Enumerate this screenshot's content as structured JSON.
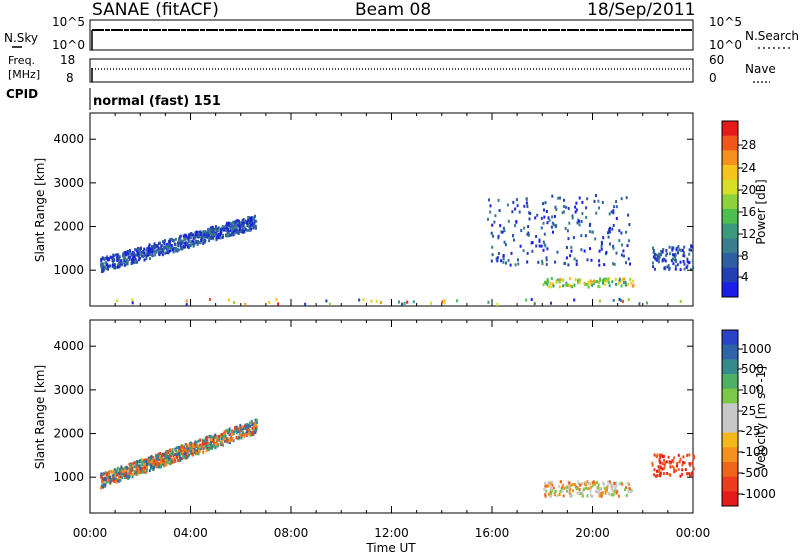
{
  "header": {
    "station": "SANAE (fitACF)",
    "beam": "Beam 08",
    "date": "18/Sep/2011"
  },
  "top_panels": {
    "nsky_label": "N.Sky",
    "nsky_ticks_left": [
      "10^5",
      "10^0"
    ],
    "nsky_ticks_right": [
      "10^5",
      "10^0"
    ],
    "nsearch_label": "N.Search",
    "freq_label_line1": "Freq.",
    "freq_label_line2": "[MHz]",
    "freq_ticks": [
      "18",
      "8"
    ],
    "nave_ticks": [
      "60",
      "0"
    ],
    "nave_label": "Nave",
    "cpid_label": "CPID",
    "cpid_text": "normal (fast) 151"
  },
  "power_colorbar": {
    "label": "Power [dB]",
    "ticks": [
      "28",
      "24",
      "20",
      "16",
      "12",
      "8",
      "4"
    ],
    "colors": [
      "#e51b1b",
      "#f0571b",
      "#f5911e",
      "#f7c31d",
      "#d6de2a",
      "#8fd13a",
      "#4cbf4f",
      "#399a7c",
      "#3a7d8e",
      "#2f5fa0",
      "#243fb3",
      "#1a1ee6"
    ]
  },
  "velocity_colorbar": {
    "label": "Velocity [m s^-1]",
    "ticks": [
      "1000",
      "500",
      "100",
      "25",
      "-25",
      "-100",
      "-500",
      "-1000"
    ],
    "colors": [
      "#2a43c9",
      "#2e63a8",
      "#368a8c",
      "#4faf64",
      "#7cc94a",
      "#c8c8c8",
      "#c8c8c8",
      "#f5b81a",
      "#f5911e",
      "#f0651c",
      "#ea3d1c",
      "#e51b1b"
    ]
  },
  "chart_data": [
    {
      "type": "heatmap",
      "title": "",
      "xlabel": "Time UT",
      "ylabel": "Slant Range [km]",
      "xticks": [
        "00:00",
        "04:00",
        "08:00",
        "12:00",
        "16:00",
        "20:00",
        "00:00"
      ],
      "yticks": [
        "1000",
        "2000",
        "3000",
        "4000"
      ],
      "xlim_hours": [
        0,
        24
      ],
      "ylim_km": [
        180,
        4600
      ],
      "colorbar_label": "Power [dB]",
      "scatter_regions": [
        {
          "t0": 0.4,
          "t1": 6.6,
          "r0": 1000,
          "r1": 2250,
          "note": "rising echo band",
          "density": 0.55
        },
        {
          "t0": 18.0,
          "t1": 21.6,
          "r0": 600,
          "r1": 800,
          "note": "strong band 20-28 dB",
          "density": 0.8
        },
        {
          "t0": 22.3,
          "t1": 24.0,
          "r0": 1000,
          "r1": 1550,
          "note": "late echoes",
          "density": 0.6
        },
        {
          "t0": 15.8,
          "t1": 21.5,
          "r0": 1100,
          "r1": 2700,
          "note": "sparse patches",
          "density": 0.15
        },
        {
          "t0": 0.5,
          "t1": 23.5,
          "r0": 200,
          "r1": 320,
          "note": "near-range ground",
          "density": 0.1
        }
      ]
    },
    {
      "type": "heatmap",
      "title": "",
      "xlabel": "Time UT",
      "ylabel": "Slant Range [km]",
      "xticks": [
        "00:00",
        "04:00",
        "08:00",
        "12:00",
        "16:00",
        "20:00",
        "00:00"
      ],
      "yticks": [
        "1000",
        "2000",
        "3000",
        "4000"
      ],
      "xlim_hours": [
        0,
        24
      ],
      "ylim_km": [
        180,
        4600
      ],
      "colorbar_label": "Velocity [m s^-1]",
      "scatter_regions": [
        {
          "t0": 0.4,
          "t1": 6.6,
          "r0": 800,
          "r1": 2300,
          "note": "negative velocities (orange/red)",
          "density": 0.55
        },
        {
          "t0": 18.0,
          "t1": 21.6,
          "r0": 550,
          "r1": 900,
          "note": "mixed grey/orange",
          "density": 0.8
        },
        {
          "t0": 22.3,
          "t1": 24.0,
          "r0": 1000,
          "r1": 1500,
          "note": "red",
          "density": 0.6
        }
      ]
    }
  ]
}
